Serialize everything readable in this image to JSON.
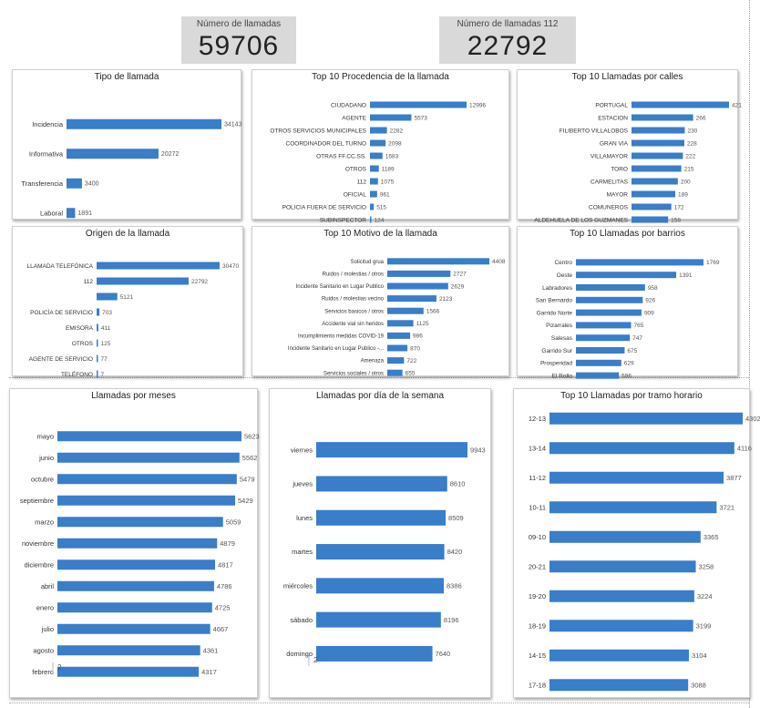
{
  "kpis": {
    "total": {
      "label": "Número de llamadas",
      "value": "59706"
    },
    "n112": {
      "label": "Número de llamadas 112",
      "value": "22792"
    }
  },
  "bar_color": "#3a7dc9",
  "chart_data": [
    {
      "id": "tipo",
      "type": "bar",
      "orientation": "horizontal",
      "title": "Tipo de llamada",
      "categories": [
        "Incidencia",
        "Informativa",
        "Transferencia",
        "Laboral"
      ],
      "values": [
        34143,
        20272,
        3400,
        1891
      ],
      "value_labels": [
        "34143",
        "20272",
        "3400",
        "1891"
      ]
    },
    {
      "id": "procedencia",
      "type": "bar",
      "orientation": "horizontal",
      "title": "Top 10 Procedencia de la llamada",
      "categories": [
        "CIUDADANO",
        "AGENTE",
        "OTROS SERVICIOS MUNICIPALES",
        "COORDINADOR DEL TURNO",
        "OTRAS FF.CC.SS.",
        "OTROS",
        "112",
        "OFICIAL",
        "POLICIA FUERA DE SERVICIO",
        "SUBINSPECTOR"
      ],
      "values": [
        12996,
        5573,
        2282,
        2098,
        1683,
        1189,
        1075,
        961,
        515,
        124
      ],
      "value_labels": [
        "12996",
        "5573",
        "2282",
        "2098",
        "1683",
        "1189",
        "1075",
        "961",
        "515",
        "124"
      ]
    },
    {
      "id": "calles",
      "type": "bar",
      "orientation": "horizontal",
      "title": "Top 10 Llamadas por calles",
      "categories": [
        "PORTUGAL",
        "ESTACION",
        "FILIBERTO VILLALOBOS",
        "GRAN VIA",
        "VILLAMAYOR",
        "TORO",
        "CARMELITAS",
        "MAYOR",
        "COMUNEROS",
        "ALDEHUELA DE LOS GUZMANES"
      ],
      "values": [
        421,
        266,
        230,
        228,
        222,
        215,
        200,
        189,
        172,
        158
      ],
      "value_labels": [
        "421",
        "266",
        "230",
        "228",
        "222",
        "215",
        "200",
        "189",
        "172",
        "158"
      ]
    },
    {
      "id": "origen",
      "type": "bar",
      "orientation": "horizontal",
      "title": "Origen de la llamada",
      "categories": [
        "LLAMADA TELEFÓNICA",
        "112",
        "",
        "POLICÍA DE SERVICIO",
        "EMISORA",
        "OTROS",
        "AGENTE DE SERVICIO",
        "TELÉFONO"
      ],
      "values": [
        30470,
        22792,
        5121,
        703,
        411,
        125,
        77,
        7
      ],
      "value_labels": [
        "30470",
        "22792",
        "5121",
        "703",
        "411",
        "125",
        "77",
        "7"
      ]
    },
    {
      "id": "motivo",
      "type": "bar",
      "orientation": "horizontal",
      "title": "Top 10 Motivo de la llamada",
      "categories": [
        "Solicitud grua",
        "Ruidos / molestias / otros",
        "Incidente Sanitario en Lugar Publico",
        "Ruidos / molestias vecino",
        "Servicios basicos / otros",
        "Accidente vial sin heridos",
        "Incumplimiento medidas COVID-19",
        "Incidente Sanitario en Lugar Publico -...",
        "Amenaza",
        "Servicios sociales / otros"
      ],
      "values": [
        4408,
        2727,
        2629,
        2123,
        1566,
        1125,
        986,
        870,
        722,
        655
      ],
      "value_labels": [
        "4408",
        "2727",
        "2629",
        "2123",
        "1566",
        "1125",
        "986",
        "870",
        "722",
        "655"
      ]
    },
    {
      "id": "barrios",
      "type": "bar",
      "orientation": "horizontal",
      "title": "Top 10 Llamadas por barrios",
      "categories": [
        "Centro",
        "Oeste",
        "Labradores",
        "San Bernardo",
        "Garrido Norte",
        "Pizarrales",
        "Salesas",
        "Garrido Sur",
        "Prosperidad",
        "El Rollo"
      ],
      "values": [
        1769,
        1391,
        958,
        926,
        909,
        765,
        747,
        675,
        629,
        596
      ],
      "value_labels": [
        "1769",
        "1391",
        "958",
        "926",
        "909",
        "765",
        "747",
        "675",
        "629",
        "596"
      ]
    },
    {
      "id": "meses",
      "type": "bar",
      "orientation": "horizontal",
      "title": "Llamadas por meses",
      "categories": [
        "mayo",
        "junio",
        "octubre",
        "septiembre",
        "marzo",
        "noviembre",
        "diciembre",
        "abril",
        "enero",
        "julio",
        "agosto",
        "febrero"
      ],
      "values": [
        5623,
        5562,
        5479,
        5429,
        5059,
        4879,
        4817,
        4786,
        4725,
        4667,
        4361,
        4317
      ],
      "value_labels": [
        "5623",
        "5562",
        "5479",
        "5429",
        "5059",
        "4879",
        "4817",
        "4786",
        "4725",
        "4667",
        "4361",
        "4317"
      ],
      "scrollbar_label": "2"
    },
    {
      "id": "dias",
      "type": "bar",
      "orientation": "horizontal",
      "title": "Llamadas por día de la semana",
      "categories": [
        "viernes",
        "jueves",
        "lunes",
        "martes",
        "miércoles",
        "sábado",
        "domingo"
      ],
      "values": [
        9943,
        8610,
        8509,
        8420,
        8386,
        8196,
        7640
      ],
      "value_labels": [
        "9943",
        "8610",
        "8509",
        "8420",
        "8386",
        "8196",
        "7640"
      ],
      "scrollbar_label": "2"
    },
    {
      "id": "tramo",
      "type": "bar",
      "orientation": "horizontal",
      "title": "Top 10 Llamadas por tramo horario",
      "categories": [
        "12-13",
        "13-14",
        "11-12",
        "10-11",
        "09-10",
        "20-21",
        "19-20",
        "18-19",
        "14-15",
        "17-18"
      ],
      "values": [
        4302,
        4116,
        3877,
        3721,
        3365,
        3258,
        3224,
        3199,
        3104,
        3088
      ],
      "value_labels": [
        "4302",
        "4116",
        "3877",
        "3721",
        "3365",
        "3258",
        "3224",
        "3199",
        "3104",
        "3088"
      ]
    }
  ]
}
